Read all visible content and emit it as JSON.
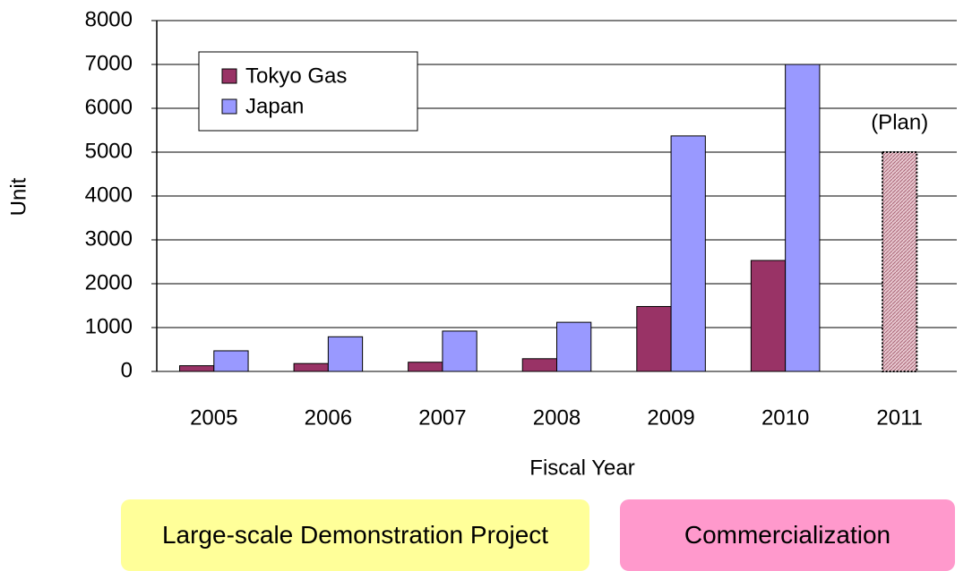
{
  "chart_data": {
    "type": "bar",
    "x_label": "Fiscal Year",
    "y_label": "Unit",
    "categories": [
      "2005",
      "2006",
      "2007",
      "2008",
      "2009",
      "2010",
      "2011"
    ],
    "series": [
      {
        "name": "Tokyo Gas",
        "color": "#993366",
        "values": [
          130,
          180,
          210,
          290,
          1480,
          2530,
          null
        ]
      },
      {
        "name": "Japan",
        "color": "#9999ff",
        "values": [
          470,
          790,
          920,
          1120,
          5370,
          7000,
          null
        ]
      }
    ],
    "annotations": [
      {
        "text": "(Plan)",
        "category": "2011",
        "value": 5000,
        "color": "#cc8899"
      }
    ],
    "ylim": [
      0,
      8000
    ],
    "yticks": [
      0,
      1000,
      2000,
      3000,
      4000,
      5000,
      6000,
      7000,
      8000
    ],
    "grid": true,
    "legend": "upper left"
  },
  "phases": [
    {
      "text": "Large-scale Demonstration Project",
      "color": "#ffff99"
    },
    {
      "text": "Commercialization",
      "color": "#ff99cc"
    }
  ]
}
